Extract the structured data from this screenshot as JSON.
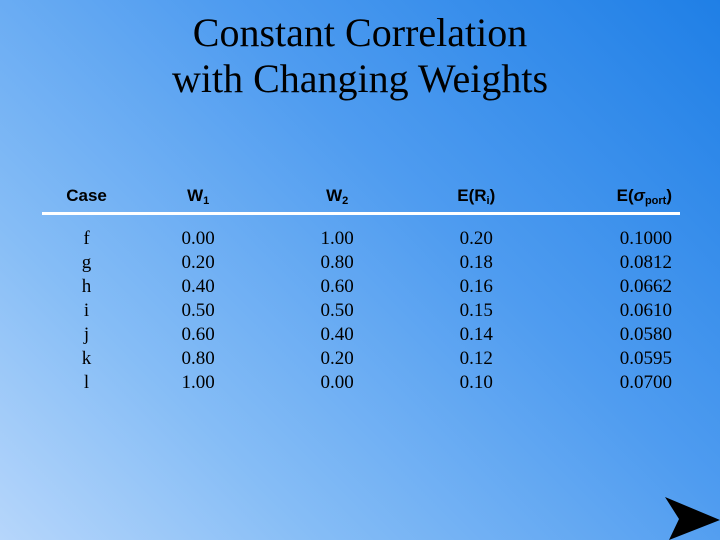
{
  "title": {
    "line1": "Constant Correlation",
    "line2": "with Changing Weights"
  },
  "table": {
    "headers": {
      "case": "Case",
      "w1_main": "W",
      "w1_sub": "1",
      "w2_main": "W",
      "w2_sub": "2",
      "er_main": "E(R",
      "er_sub": "i",
      "er_close": ")",
      "esig_main": "E(",
      "esig_symbol": "σ",
      "esig_sub": "port",
      "esig_close": ")"
    },
    "rows": [
      [
        "f",
        "0.00",
        "1.00",
        "0.20",
        "0.1000"
      ],
      [
        "g",
        "0.20",
        "0.80",
        "0.18",
        "0.0812"
      ],
      [
        "h",
        "0.40",
        "0.60",
        "0.16",
        "0.0662"
      ],
      [
        "i",
        "0.50",
        "0.50",
        "0.15",
        "0.0610"
      ],
      [
        "j",
        "0.60",
        "0.40",
        "0.14",
        "0.0580"
      ],
      [
        "k",
        "0.80",
        "0.20",
        "0.12",
        "0.0595"
      ],
      [
        "l",
        "1.00",
        "0.00",
        "0.10",
        "0.0700"
      ]
    ]
  },
  "nav": {
    "next_icon": "arrow-right-icon"
  }
}
